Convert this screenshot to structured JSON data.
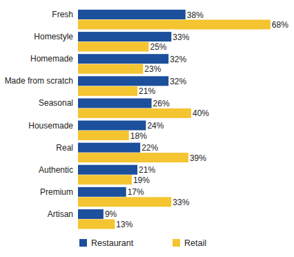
{
  "chart_data": {
    "type": "bar",
    "orientation": "horizontal",
    "categories": [
      "Fresh",
      "Homestyle",
      "Homemade",
      "Made from scratch",
      "Seasonal",
      "Housemade",
      "Real",
      "Authentic",
      "Premium",
      "Artisan"
    ],
    "series": [
      {
        "name": "Restaurant",
        "color": "#1c4f9c",
        "values": [
          38,
          33,
          32,
          32,
          26,
          24,
          22,
          21,
          17,
          9
        ],
        "value_labels": [
          "38%",
          "33%",
          "32%",
          "32%",
          "26%",
          "24%",
          "22%",
          "21%",
          "17%",
          "9%"
        ]
      },
      {
        "name": "Retail",
        "color": "#f4c431",
        "values": [
          68,
          25,
          23,
          21,
          40,
          18,
          39,
          19,
          33,
          13
        ],
        "value_labels": [
          "68%",
          "25%",
          "23%",
          "21%",
          "40%",
          "18%",
          "39%",
          "19%",
          "33%",
          "13%"
        ]
      }
    ],
    "ylim": [
      0,
      70
    ],
    "data_labels": true,
    "legend": "bottom",
    "grid": false
  }
}
